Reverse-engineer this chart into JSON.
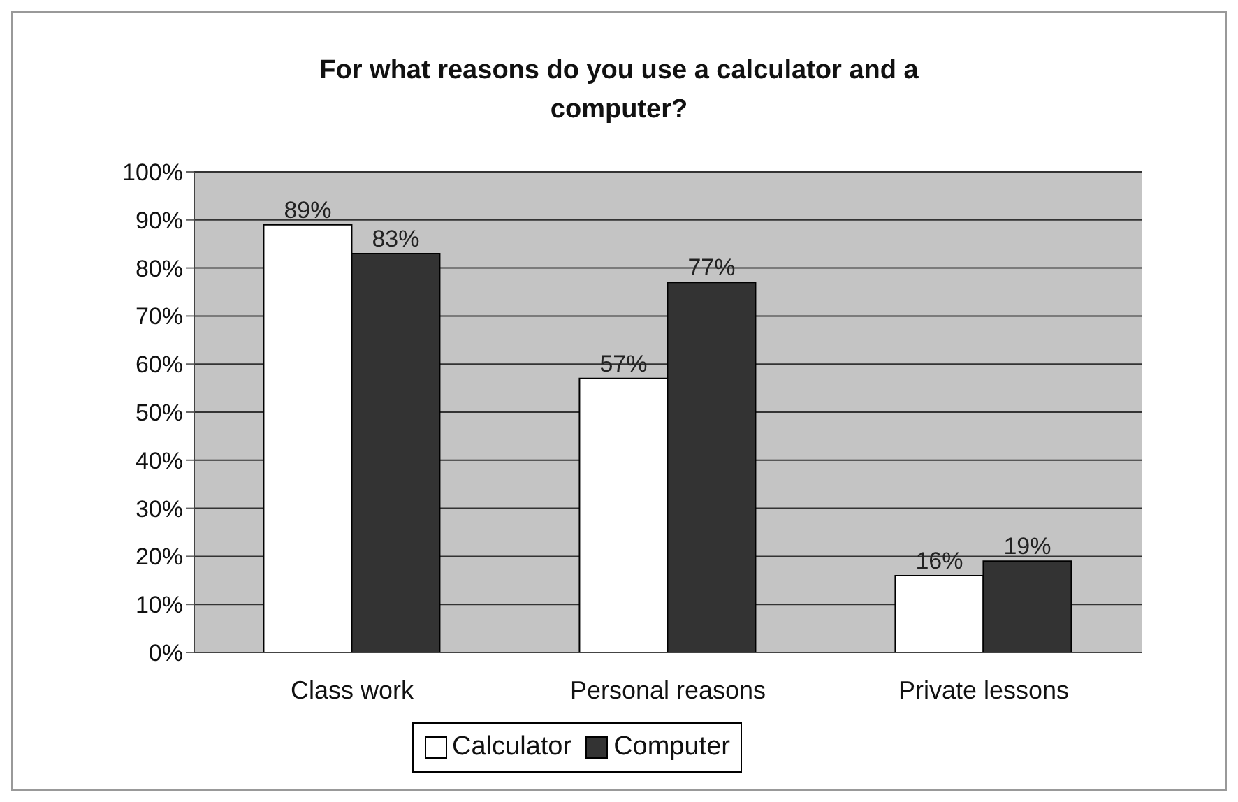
{
  "chart_data": {
    "type": "bar",
    "title": "For what reasons do you use a calculator and a computer?",
    "categories": [
      "Class work",
      "Personal reasons",
      "Private lessons"
    ],
    "series": [
      {
        "name": "Calculator",
        "color": "#ffffff",
        "values": [
          89,
          57,
          16
        ],
        "value_labels": [
          "89%",
          "57%",
          "16%"
        ]
      },
      {
        "name": "Computer",
        "color": "#333333",
        "values": [
          83,
          77,
          19
        ],
        "value_labels": [
          "83%",
          "77%",
          "19%"
        ]
      }
    ],
    "ylim": [
      0,
      100
    ],
    "yticks": [
      {
        "value": 0,
        "label": "0%"
      },
      {
        "value": 10,
        "label": "10%"
      },
      {
        "value": 20,
        "label": "20%"
      },
      {
        "value": 30,
        "label": "30%"
      },
      {
        "value": 40,
        "label": "40%"
      },
      {
        "value": 50,
        "label": "50%"
      },
      {
        "value": 60,
        "label": "60%"
      },
      {
        "value": 70,
        "label": "70%"
      },
      {
        "value": 80,
        "label": "80%"
      },
      {
        "value": 90,
        "label": "90%"
      },
      {
        "value": 100,
        "label": "100%"
      }
    ],
    "grid": "y",
    "legend": "bottom"
  }
}
